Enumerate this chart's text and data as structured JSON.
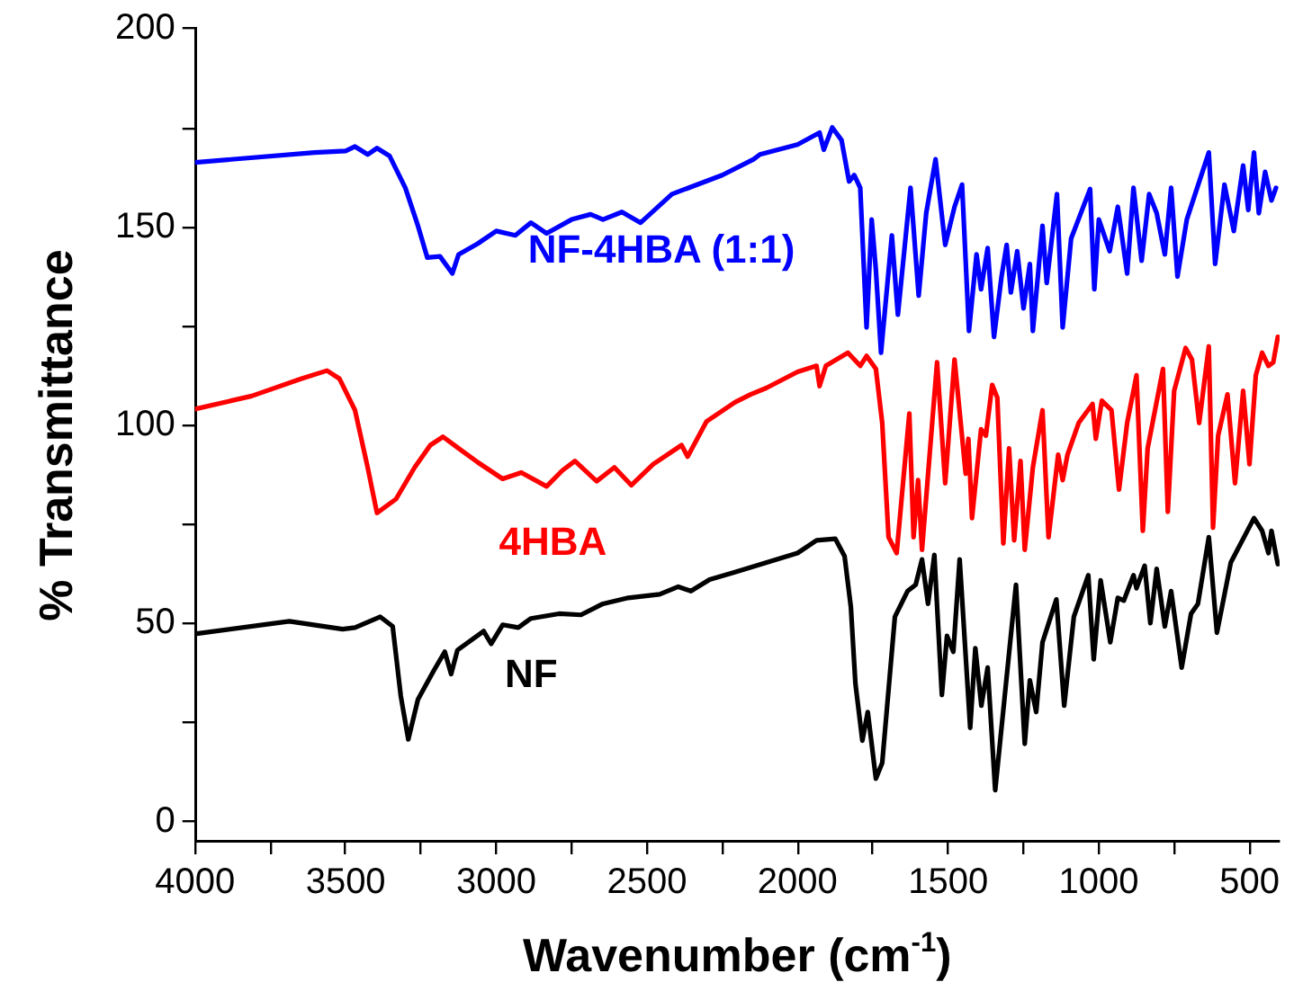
{
  "chart_data": {
    "type": "line",
    "xlabel": "Wavenumber (cm$^{-1}$)",
    "ylabel": "% Transmittance",
    "xlim": [
      4000,
      400
    ],
    "ylim": [
      -5,
      200
    ],
    "xticks": [
      4000,
      {
        "value": 3750,
        "label": null
      },
      3500,
      {
        "value": 3250,
        "label": null
      },
      3000,
      {
        "value": 2750,
        "label": null
      },
      2500,
      {
        "value": 2250,
        "label": null
      },
      2000,
      {
        "value": 1750,
        "label": null
      },
      1500,
      {
        "value": 1250,
        "label": null
      },
      1000,
      {
        "value": 750,
        "label": null
      },
      500
    ],
    "yticks": [
      0,
      {
        "value": 25,
        "label": null
      },
      50,
      {
        "value": 75,
        "label": null
      },
      100,
      {
        "value": 125,
        "label": null
      },
      150,
      {
        "value": 175,
        "label": null
      },
      200
    ],
    "grid": false,
    "legend": false,
    "marker": "none",
    "line_style": "solid",
    "series": [
      {
        "name": "NF-4HBA (1:1)",
        "color": "#0000ff",
        "x": [
          4000,
          3604,
          3500,
          3469,
          3427,
          3396,
          3354,
          3302,
          3260,
          3229,
          3187,
          3146,
          3125,
          3062,
          3000,
          2937,
          2885,
          2833,
          2750,
          2687,
          2646,
          2583,
          2521,
          2417,
          2250,
          2146,
          2125,
          2000,
          1927,
          1913,
          1885,
          1854,
          1829,
          1812,
          1792,
          1771,
          1754,
          1740,
          1723,
          1687,
          1667,
          1625,
          1598,
          1573,
          1542,
          1510,
          1479,
          1454,
          1431,
          1406,
          1391,
          1369,
          1348,
          1323,
          1306,
          1292,
          1271,
          1250,
          1229,
          1219,
          1187,
          1173,
          1139,
          1120,
          1092,
          1029,
          1015,
          1000,
          964,
          937,
          906,
          885,
          858,
          833,
          808,
          781,
          760,
          739,
          708,
          677,
          635,
          614,
          583,
          552,
          521,
          504,
          485,
          469,
          448,
          427,
          412
        ],
        "values": [
          166.3,
          168.8,
          169.2,
          170.3,
          168.3,
          169.9,
          167.9,
          159.9,
          150.3,
          142.3,
          142.6,
          138.3,
          143.1,
          145.8,
          149,
          147.9,
          151.1,
          148.4,
          151.9,
          153.2,
          151.9,
          153.8,
          151.1,
          158.3,
          163.1,
          167.1,
          168.3,
          170.8,
          173.8,
          169.5,
          175.1,
          171.9,
          161.5,
          163.1,
          159.9,
          124.7,
          151.9,
          139.1,
          118.3,
          147.9,
          127.9,
          159.9,
          132.7,
          153.5,
          167.1,
          145.5,
          155.1,
          160.7,
          123.8,
          143.1,
          134.3,
          144.7,
          122.3,
          137.5,
          145.5,
          133.5,
          143.9,
          129.5,
          140.7,
          123.8,
          150.3,
          135.9,
          158.3,
          124.7,
          147.1,
          159.6,
          134.3,
          151.9,
          143.9,
          155.1,
          138.3,
          159.9,
          141.5,
          158.3,
          153.5,
          143.1,
          159.9,
          137.5,
          151.9,
          159.1,
          168.8,
          140.7,
          160.7,
          149,
          165.5,
          154.3,
          168.8,
          153.5,
          163.9,
          156.7,
          159.9
        ]
      },
      {
        "name": "4HBA",
        "color": "#ff0000",
        "x": [
          4000,
          3812,
          3646,
          3562,
          3521,
          3469,
          3427,
          3396,
          3333,
          3271,
          3219,
          3177,
          3125,
          3062,
          2979,
          2917,
          2833,
          2781,
          2739,
          2667,
          2608,
          2552,
          2479,
          2385,
          2365,
          2302,
          2208,
          2156,
          2104,
          2000,
          1937,
          1927,
          1906,
          1833,
          1792,
          1771,
          1740,
          1719,
          1698,
          1671,
          1629,
          1615,
          1600,
          1587,
          1537,
          1510,
          1479,
          1442,
          1433,
          1421,
          1391,
          1375,
          1354,
          1337,
          1317,
          1298,
          1281,
          1260,
          1246,
          1219,
          1187,
          1167,
          1135,
          1120,
          1104,
          1067,
          1021,
          1010,
          990,
          958,
          933,
          906,
          875,
          854,
          838,
          787,
          771,
          750,
          712,
          691,
          667,
          635,
          621,
          604,
          573,
          548,
          521,
          500,
          479,
          458,
          437,
          421,
          406
        ],
        "values": [
          104.1,
          107.4,
          111.8,
          113.8,
          111.8,
          103.8,
          89.4,
          77.9,
          81.4,
          89.4,
          95,
          97.1,
          94.2,
          90.7,
          86.5,
          88.1,
          84.6,
          88.6,
          91,
          85.9,
          89.4,
          84.9,
          90.2,
          95,
          92.1,
          101,
          105.8,
          107.8,
          109.4,
          113.5,
          115,
          109.9,
          115,
          118.3,
          115,
          117.5,
          114.2,
          100.6,
          71.8,
          67.8,
          103,
          71.8,
          86.2,
          68.6,
          115.9,
          85.4,
          116.6,
          87.8,
          96.6,
          76.6,
          99,
          97.4,
          110.2,
          107,
          70.2,
          94.2,
          71,
          91,
          68.6,
          89.4,
          103.8,
          71.8,
          92.6,
          86.2,
          92.6,
          100.6,
          105.4,
          96.6,
          106.2,
          103.8,
          83.8,
          100.6,
          112.6,
          73.4,
          94.2,
          114.2,
          78.2,
          108.7,
          119.5,
          116.6,
          100.6,
          119.9,
          74.2,
          97.4,
          107.8,
          85.4,
          108.7,
          90.2,
          112.6,
          118.3,
          115,
          115.9,
          122.3
        ]
      },
      {
        "name": "NF",
        "color": "#000000",
        "x": [
          4000,
          3687,
          3510,
          3469,
          3385,
          3344,
          3317,
          3292,
          3260,
          3208,
          3171,
          3150,
          3129,
          3042,
          3017,
          2979,
          2927,
          2885,
          2792,
          2719,
          2646,
          2562,
          2458,
          2396,
          2354,
          2292,
          2208,
          2000,
          1937,
          1875,
          1844,
          1823,
          1808,
          1785,
          1767,
          1740,
          1719,
          1677,
          1635,
          1608,
          1587,
          1567,
          1546,
          1521,
          1504,
          1483,
          1462,
          1427,
          1410,
          1390,
          1369,
          1344,
          1275,
          1246,
          1229,
          1208,
          1187,
          1141,
          1115,
          1083,
          1035,
          1017,
          994,
          962,
          937,
          917,
          885,
          875,
          848,
          829,
          808,
          781,
          760,
          725,
          694,
          671,
          635,
          608,
          562,
          485,
          458,
          437,
          427,
          406
        ],
        "values": [
          47.4,
          50.6,
          48.6,
          49,
          51.7,
          49.3,
          31.7,
          20.8,
          30.9,
          38.1,
          42.9,
          37.3,
          43.3,
          48.1,
          44.9,
          49.7,
          49,
          51.3,
          52.5,
          52.2,
          55,
          56.5,
          57.4,
          59.3,
          58.2,
          61.1,
          63,
          67.8,
          71,
          71.4,
          67,
          54.1,
          34.9,
          20.5,
          27.7,
          10.9,
          14.9,
          51.7,
          58.2,
          59.8,
          66.2,
          55,
          67.3,
          32,
          46.9,
          42.9,
          66.2,
          23.7,
          43.8,
          29.3,
          38.9,
          8,
          59.8,
          19.7,
          35.7,
          27.7,
          45.3,
          56.1,
          29.3,
          51.7,
          62.2,
          41,
          60.9,
          45.3,
          56.5,
          55.8,
          62.2,
          58.9,
          64.6,
          50.1,
          63.8,
          49.3,
          58.2,
          38.9,
          52.5,
          55,
          71.8,
          47.7,
          65.4,
          76.6,
          73.4,
          67.8,
          73.4,
          65
        ]
      }
    ]
  }
}
